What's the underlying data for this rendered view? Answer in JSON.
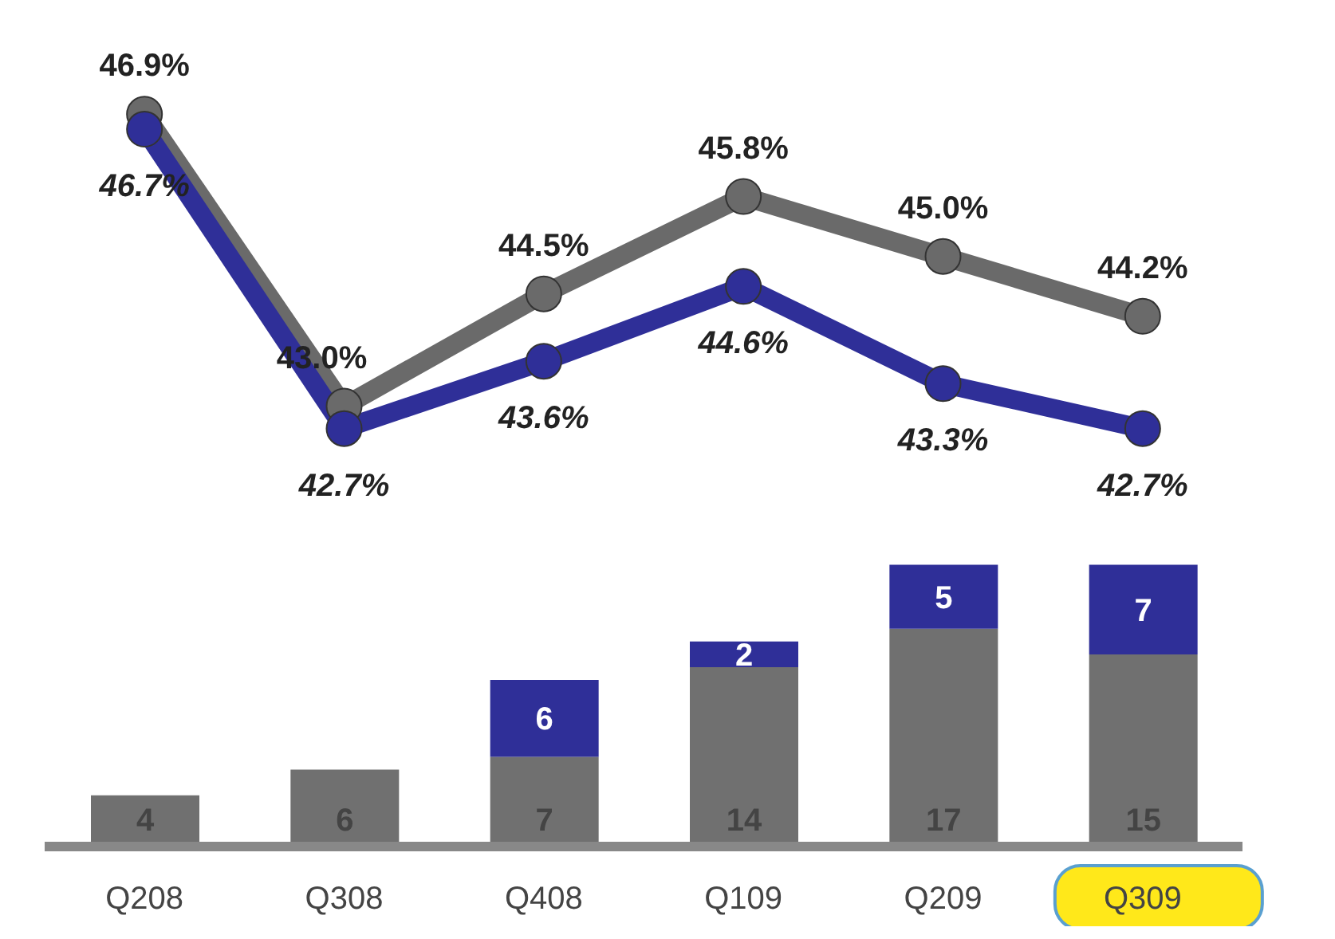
{
  "chart_data": [
    {
      "type": "line",
      "categories": [
        null,
        null,
        null,
        null,
        null,
        null
      ],
      "tick_labels": false,
      "marker": "circle",
      "grid": false,
      "legend": false,
      "series": [
        {
          "color": "#6a6a6a",
          "values": [
            46.9,
            43.0,
            44.5,
            45.8,
            45.0,
            44.2
          ],
          "value_labels": [
            "46.9%",
            "43.0%",
            "44.5%",
            "45.8%",
            "45.0%",
            "44.2%"
          ]
        },
        {
          "color": "#2f2f98",
          "values": [
            46.7,
            42.7,
            43.6,
            44.6,
            43.3,
            42.7
          ],
          "value_labels": [
            "46.7%",
            "42.7%",
            "43.6%",
            "44.6%",
            "43.3%",
            "42.7%"
          ]
        }
      ]
    },
    {
      "type": "bar",
      "stacked": true,
      "data_labels": true,
      "categories": [
        "Q208",
        "Q308",
        "Q408",
        "Q109",
        "Q209",
        "Q309"
      ],
      "grid": false,
      "legend": false,
      "series": [
        {
          "color": "#707070",
          "values": [
            4,
            6,
            7,
            14,
            17,
            15
          ]
        },
        {
          "color": "#2f2f98",
          "values": [
            null,
            null,
            6,
            2,
            5,
            7
          ]
        }
      ]
    }
  ]
}
